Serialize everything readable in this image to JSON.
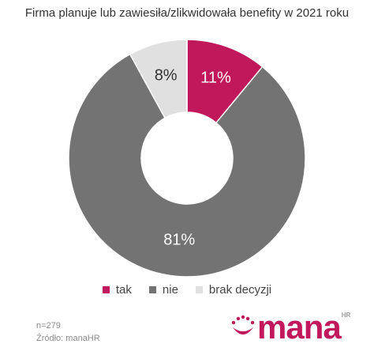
{
  "title": "Firma planuje lub zawiesiła/zlikwidowała benefity w 2021 roku",
  "chart_data": {
    "type": "pie",
    "donut": true,
    "title": "Firma planuje lub zawiesiła/zlikwidowała benefity w 2021 roku",
    "slices": [
      {
        "label": "tak",
        "value": 11,
        "display": "11%",
        "color": "#c0185a",
        "text_color": "#ffffff"
      },
      {
        "label": "nie",
        "value": 81,
        "display": "81%",
        "color": "#737373",
        "text_color": "#ffffff"
      },
      {
        "label": "brak decyzji",
        "value": 8,
        "display": "8%",
        "color": "#e0e0e0",
        "text_color": "#333333"
      }
    ],
    "legend_position": "bottom"
  },
  "legend": [
    {
      "label": "tak",
      "color": "#c0185a"
    },
    {
      "label": "nie",
      "color": "#737373"
    },
    {
      "label": "brak decyzji",
      "color": "#e0e0e0"
    }
  ],
  "footer": {
    "n": "n=279",
    "source": "Źródło: manaHR"
  },
  "logo": {
    "word": "mana",
    "sup": "HR",
    "color": "#c0185a",
    "sup_color": "#9a9a9a"
  }
}
